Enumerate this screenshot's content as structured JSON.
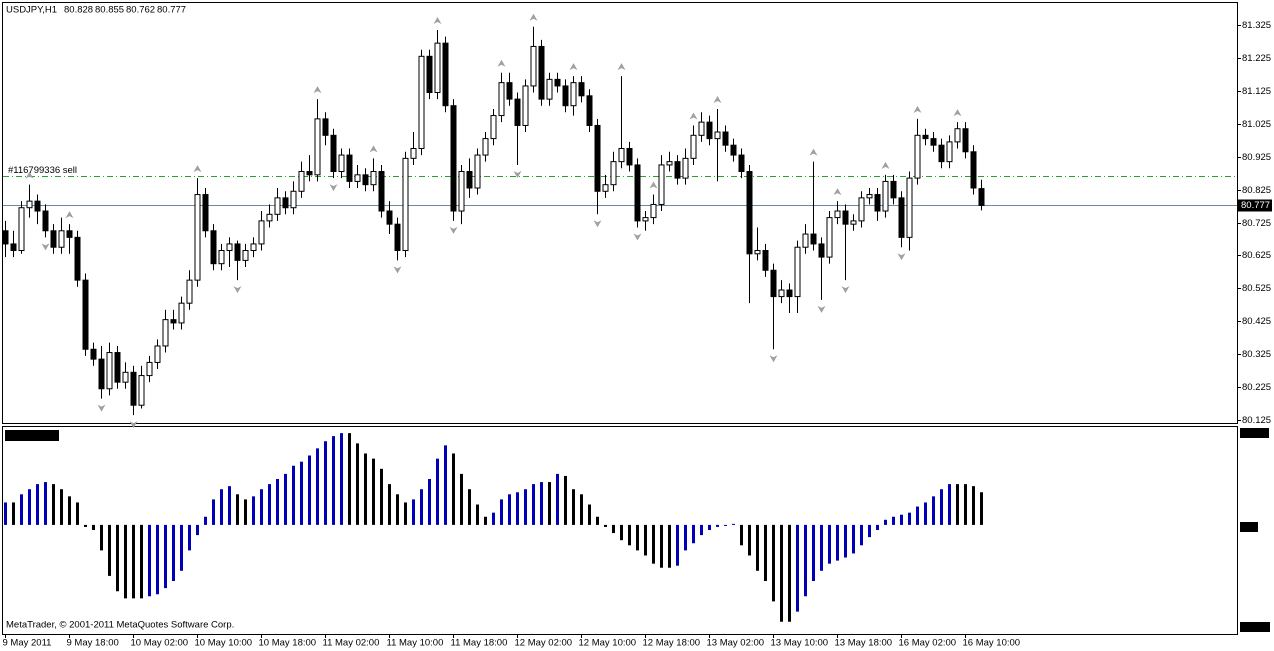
{
  "chart_data": [
    {
      "type": "candlestick",
      "title": "USDJPY,H1",
      "order": {
        "label": "#116799336 sell",
        "price": 80.865
      },
      "up_color": "#ffffff",
      "down_color": "#000000",
      "fractal_color": "#a0a0a0",
      "order_color": "#2e9e2e",
      "bid_color": "#6f86a8",
      "ylim": [
        80.119,
        81.392
      ],
      "yticks": [
        81.325,
        81.225,
        81.125,
        81.025,
        80.925,
        80.825,
        80.725,
        80.625,
        80.525,
        80.425,
        80.325,
        80.225,
        80.125
      ],
      "categories": [
        "9 May 2011",
        null,
        null,
        null,
        null,
        null,
        null,
        null,
        "9 May 18:00",
        null,
        null,
        null,
        null,
        null,
        null,
        null,
        "10 May 02:00",
        null,
        null,
        null,
        null,
        null,
        null,
        null,
        "10 May 10:00",
        null,
        null,
        null,
        null,
        null,
        null,
        null,
        "10 May 18:00",
        null,
        null,
        null,
        null,
        null,
        null,
        null,
        "11 May 02:00",
        null,
        null,
        null,
        null,
        null,
        null,
        null,
        "11 May 10:00",
        null,
        null,
        null,
        null,
        null,
        null,
        null,
        "11 May 18:00",
        null,
        null,
        null,
        null,
        null,
        null,
        null,
        "12 May 02:00",
        null,
        null,
        null,
        null,
        null,
        null,
        null,
        "12 May 10:00",
        null,
        null,
        null,
        null,
        null,
        null,
        null,
        "12 May 18:00",
        null,
        null,
        null,
        null,
        null,
        null,
        null,
        "13 May 02:00",
        null,
        null,
        null,
        null,
        null,
        null,
        null,
        "13 May 10:00",
        null,
        null,
        null,
        null,
        null,
        null,
        null,
        "13 May 18:00",
        null,
        null,
        null,
        null,
        null,
        null,
        null,
        "16 May 02:00",
        null,
        null,
        null,
        null,
        null,
        null,
        null,
        "16 May 10:00",
        null,
        null
      ],
      "ohlc": [
        [
          80.7,
          80.73,
          80.62,
          80.66
        ],
        [
          80.66,
          80.7,
          80.62,
          80.64
        ],
        [
          80.64,
          80.79,
          80.63,
          80.77
        ],
        [
          80.77,
          80.84,
          80.74,
          80.79
        ],
        [
          80.79,
          80.81,
          80.72,
          80.76
        ],
        [
          80.76,
          80.78,
          80.68,
          80.7
        ],
        [
          80.7,
          80.72,
          80.63,
          80.65
        ],
        [
          80.65,
          80.74,
          80.63,
          80.7
        ],
        [
          80.7,
          80.72,
          80.63,
          80.68
        ],
        [
          80.68,
          80.7,
          80.53,
          80.55
        ],
        [
          80.55,
          80.57,
          80.32,
          80.34
        ],
        [
          80.34,
          80.36,
          80.29,
          80.31
        ],
        [
          80.31,
          80.35,
          80.19,
          80.22
        ],
        [
          80.22,
          80.36,
          80.2,
          80.33
        ],
        [
          80.33,
          80.35,
          80.22,
          80.24
        ],
        [
          80.24,
          80.3,
          80.22,
          80.27
        ],
        [
          80.27,
          80.29,
          80.14,
          80.17
        ],
        [
          80.17,
          80.29,
          80.16,
          80.26
        ],
        [
          80.26,
          80.32,
          80.24,
          80.3
        ],
        [
          80.3,
          80.37,
          80.28,
          80.35
        ],
        [
          80.35,
          80.46,
          80.33,
          80.43
        ],
        [
          80.43,
          80.46,
          80.4,
          80.42
        ],
        [
          80.42,
          80.5,
          80.4,
          80.48
        ],
        [
          80.48,
          80.58,
          80.46,
          80.55
        ],
        [
          80.55,
          80.86,
          80.53,
          80.81
        ],
        [
          80.81,
          80.83,
          80.68,
          80.7
        ],
        [
          80.7,
          80.72,
          80.58,
          80.6
        ],
        [
          80.6,
          80.66,
          80.58,
          80.64
        ],
        [
          80.64,
          80.68,
          80.59,
          80.66
        ],
        [
          80.66,
          80.67,
          80.55,
          80.61
        ],
        [
          80.61,
          80.66,
          80.59,
          80.64
        ],
        [
          80.64,
          80.68,
          80.62,
          80.66
        ],
        [
          80.66,
          80.76,
          80.64,
          80.73
        ],
        [
          80.73,
          80.78,
          80.71,
          80.75
        ],
        [
          80.75,
          80.83,
          80.73,
          80.8
        ],
        [
          80.8,
          80.82,
          80.75,
          80.77
        ],
        [
          80.77,
          80.85,
          80.75,
          80.82
        ],
        [
          80.82,
          80.91,
          80.8,
          80.88
        ],
        [
          80.88,
          80.93,
          80.85,
          80.87
        ],
        [
          80.87,
          81.1,
          80.85,
          81.04
        ],
        [
          81.04,
          81.06,
          80.96,
          80.99
        ],
        [
          80.99,
          81.01,
          80.86,
          80.88
        ],
        [
          80.88,
          80.95,
          80.86,
          80.93
        ],
        [
          80.93,
          80.95,
          80.83,
          80.85
        ],
        [
          80.85,
          80.9,
          80.83,
          80.87
        ],
        [
          80.87,
          80.89,
          80.82,
          80.84
        ],
        [
          80.84,
          80.92,
          80.82,
          80.88
        ],
        [
          80.88,
          80.9,
          80.74,
          80.76
        ],
        [
          80.76,
          80.79,
          80.69,
          80.72
        ],
        [
          80.72,
          80.74,
          80.61,
          80.64
        ],
        [
          80.64,
          80.94,
          80.62,
          80.92
        ],
        [
          80.92,
          81.0,
          80.9,
          80.95
        ],
        [
          80.95,
          81.25,
          80.93,
          81.23
        ],
        [
          81.23,
          81.25,
          81.1,
          81.12
        ],
        [
          81.12,
          81.31,
          81.1,
          81.27
        ],
        [
          81.27,
          81.29,
          81.06,
          81.08
        ],
        [
          81.08,
          81.1,
          80.73,
          80.76
        ],
        [
          80.76,
          80.9,
          80.72,
          80.88
        ],
        [
          80.88,
          80.92,
          80.8,
          80.83
        ],
        [
          80.83,
          80.95,
          80.81,
          80.93
        ],
        [
          80.93,
          81.0,
          80.91,
          80.98
        ],
        [
          80.98,
          81.07,
          80.96,
          81.05
        ],
        [
          81.05,
          81.18,
          81.03,
          81.15
        ],
        [
          81.15,
          81.18,
          81.08,
          81.1
        ],
        [
          81.1,
          81.12,
          80.9,
          81.02
        ],
        [
          81.02,
          81.16,
          81.0,
          81.14
        ],
        [
          81.14,
          81.32,
          81.12,
          81.26
        ],
        [
          81.26,
          81.28,
          81.08,
          81.1
        ],
        [
          81.1,
          81.18,
          81.08,
          81.16
        ],
        [
          81.16,
          81.18,
          81.12,
          81.14
        ],
        [
          81.14,
          81.16,
          81.06,
          81.08
        ],
        [
          81.08,
          81.17,
          81.05,
          81.15
        ],
        [
          81.15,
          81.17,
          81.09,
          81.11
        ],
        [
          81.11,
          81.13,
          81.0,
          81.02
        ],
        [
          81.02,
          81.04,
          80.75,
          80.82
        ],
        [
          80.82,
          80.87,
          80.8,
          80.84
        ],
        [
          80.84,
          80.94,
          80.82,
          80.91
        ],
        [
          80.91,
          81.17,
          80.89,
          80.95
        ],
        [
          80.95,
          80.97,
          80.88,
          80.9
        ],
        [
          80.9,
          80.92,
          80.71,
          80.73
        ],
        [
          80.73,
          80.76,
          80.7,
          80.74
        ],
        [
          80.74,
          80.81,
          80.72,
          80.78
        ],
        [
          80.78,
          80.93,
          80.76,
          80.9
        ],
        [
          80.9,
          80.94,
          80.88,
          80.91
        ],
        [
          80.91,
          80.93,
          80.84,
          80.86
        ],
        [
          80.86,
          80.95,
          80.84,
          80.92
        ],
        [
          80.92,
          81.02,
          80.9,
          80.99
        ],
        [
          80.99,
          81.06,
          80.97,
          81.03
        ],
        [
          81.03,
          81.05,
          80.96,
          80.98
        ],
        [
          80.98,
          81.07,
          80.85,
          81.0
        ],
        [
          81.0,
          81.02,
          80.94,
          80.96
        ],
        [
          80.96,
          80.98,
          80.91,
          80.93
        ],
        [
          80.93,
          80.95,
          80.86,
          80.88
        ],
        [
          80.88,
          80.9,
          80.48,
          80.63
        ],
        [
          80.63,
          80.71,
          80.61,
          80.64
        ],
        [
          80.64,
          80.66,
          80.56,
          80.58
        ],
        [
          80.58,
          80.6,
          80.34,
          80.5
        ],
        [
          80.5,
          80.55,
          80.48,
          80.52
        ],
        [
          80.52,
          80.54,
          80.45,
          80.5
        ],
        [
          80.5,
          80.67,
          80.45,
          80.65
        ],
        [
          80.65,
          80.72,
          80.63,
          80.69
        ],
        [
          80.69,
          80.91,
          80.64,
          80.66
        ],
        [
          80.66,
          80.68,
          80.49,
          80.62
        ],
        [
          80.62,
          80.76,
          80.6,
          80.74
        ],
        [
          80.74,
          80.79,
          80.72,
          80.76
        ],
        [
          80.76,
          80.78,
          80.55,
          80.72
        ],
        [
          80.72,
          80.75,
          80.7,
          80.73
        ],
        [
          80.73,
          80.82,
          80.71,
          80.8
        ],
        [
          80.8,
          80.83,
          80.78,
          80.81
        ],
        [
          80.81,
          80.83,
          80.73,
          80.76
        ],
        [
          80.76,
          80.87,
          80.74,
          80.85
        ],
        [
          80.85,
          80.87,
          80.78,
          80.8
        ],
        [
          80.8,
          80.82,
          80.65,
          80.68
        ],
        [
          80.68,
          80.88,
          80.64,
          80.86
        ],
        [
          80.86,
          81.04,
          80.84,
          80.99
        ],
        [
          80.99,
          81.01,
          80.96,
          80.98
        ],
        [
          80.98,
          81.0,
          80.94,
          80.96
        ],
        [
          80.96,
          80.98,
          80.89,
          80.91
        ],
        [
          80.91,
          80.99,
          80.89,
          80.97
        ],
        [
          80.97,
          81.03,
          80.95,
          81.01
        ],
        [
          81.01,
          81.03,
          80.92,
          80.94
        ],
        [
          80.94,
          80.96,
          80.81,
          80.83
        ],
        [
          80.828,
          80.855,
          80.762,
          80.777
        ]
      ],
      "fractals_up": [
        3,
        8,
        24,
        39,
        46,
        54,
        62,
        66,
        71,
        77,
        81,
        86,
        89,
        101,
        104,
        110,
        114,
        119
      ],
      "fractals_down": [
        5,
        12,
        16,
        29,
        41,
        49,
        56,
        64,
        74,
        79,
        96,
        102,
        105,
        112
      ]
    },
    {
      "type": "bar",
      "annotation": "MetaTrader, © 2001-2011 MetaQuotes Software Corp.",
      "up_color": "#0000b4",
      "down_color": "#000000",
      "ylim": [
        -1.06,
        0.96
      ],
      "values": [
        0.22,
        0.22,
        0.3,
        0.35,
        0.4,
        0.42,
        0.4,
        0.35,
        0.28,
        0.22,
        -0.02,
        -0.05,
        -0.25,
        -0.5,
        -0.65,
        -0.72,
        -0.72,
        -0.72,
        -0.7,
        -0.68,
        -0.62,
        -0.55,
        -0.45,
        -0.25,
        -0.1,
        0.08,
        0.25,
        0.35,
        0.38,
        0.3,
        0.25,
        0.28,
        0.35,
        0.4,
        0.45,
        0.5,
        0.58,
        0.62,
        0.68,
        0.75,
        0.82,
        0.87,
        0.9,
        0.9,
        0.8,
        0.7,
        0.65,
        0.55,
        0.4,
        0.3,
        0.22,
        0.25,
        0.35,
        0.45,
        0.65,
        0.78,
        0.7,
        0.5,
        0.35,
        0.2,
        0.08,
        0.12,
        0.25,
        0.3,
        0.32,
        0.35,
        0.4,
        0.42,
        0.42,
        0.5,
        0.48,
        0.35,
        0.3,
        0.2,
        0.08,
        -0.02,
        -0.08,
        -0.15,
        -0.2,
        -0.25,
        -0.3,
        -0.38,
        -0.42,
        -0.42,
        -0.4,
        -0.25,
        -0.18,
        -0.1,
        -0.05,
        -0.02,
        -0.01,
        0.01,
        -0.2,
        -0.3,
        -0.45,
        -0.55,
        -0.75,
        -0.95,
        -0.95,
        -0.85,
        -0.7,
        -0.55,
        -0.45,
        -0.38,
        -0.35,
        -0.32,
        -0.28,
        -0.2,
        -0.12,
        -0.05,
        0.05,
        0.08,
        0.1,
        0.12,
        0.18,
        0.22,
        0.28,
        0.35,
        0.4,
        0.4,
        0.4,
        0.38,
        0.32
      ]
    }
  ]
}
